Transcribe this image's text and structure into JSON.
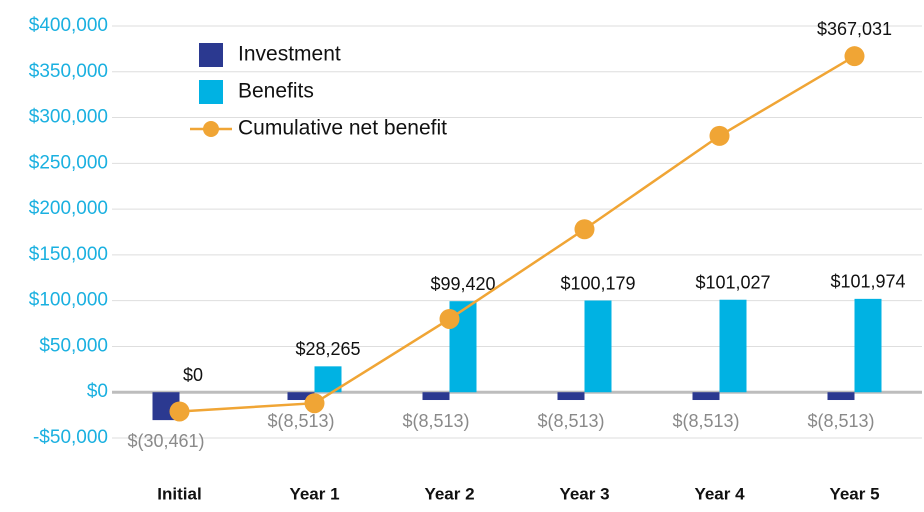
{
  "chart_data": {
    "type": "bar-line",
    "categories": [
      "Initial",
      "Year 1",
      "Year 2",
      "Year 3",
      "Year 4",
      "Year 5"
    ],
    "series": [
      {
        "name": "Investment",
        "type": "bar",
        "color": "#2b3990",
        "values": [
          -30461,
          -8513,
          -8513,
          -8513,
          -8513,
          -8513
        ],
        "value_labels": [
          "$(30,461)",
          "$(8,513)",
          "$(8,513)",
          "$(8,513)",
          "$(8,513)",
          "$(8,513)"
        ]
      },
      {
        "name": "Benefits",
        "type": "bar",
        "color": "#00b2e3",
        "values": [
          0,
          28265,
          99420,
          100179,
          101027,
          101974
        ],
        "value_labels": [
          "$0",
          "$28,265",
          "$99,420",
          "$100,179",
          "$101,027",
          "$101,974"
        ]
      },
      {
        "name": "Cumulative net benefit",
        "type": "line",
        "color": "#f0a535",
        "values": [
          -21000,
          -12000,
          80000,
          178000,
          280000,
          367031
        ],
        "value_labels": [
          null,
          null,
          null,
          null,
          null,
          "$367,031"
        ]
      }
    ],
    "ylim": [
      -50000,
      400000
    ],
    "yticks": [
      {
        "value": -50000,
        "label": "-$50,000"
      },
      {
        "value": 0,
        "label": "$0"
      },
      {
        "value": 50000,
        "label": "$50,000"
      },
      {
        "value": 100000,
        "label": "$100,000"
      },
      {
        "value": 150000,
        "label": "$150,000"
      },
      {
        "value": 200000,
        "label": "$200,000"
      },
      {
        "value": 250000,
        "label": "$250,000"
      },
      {
        "value": 300000,
        "label": "$300,000"
      },
      {
        "value": 350000,
        "label": "$350,000"
      },
      {
        "value": 400000,
        "label": "$400,000"
      }
    ],
    "grid": true,
    "legend": "upper left"
  }
}
